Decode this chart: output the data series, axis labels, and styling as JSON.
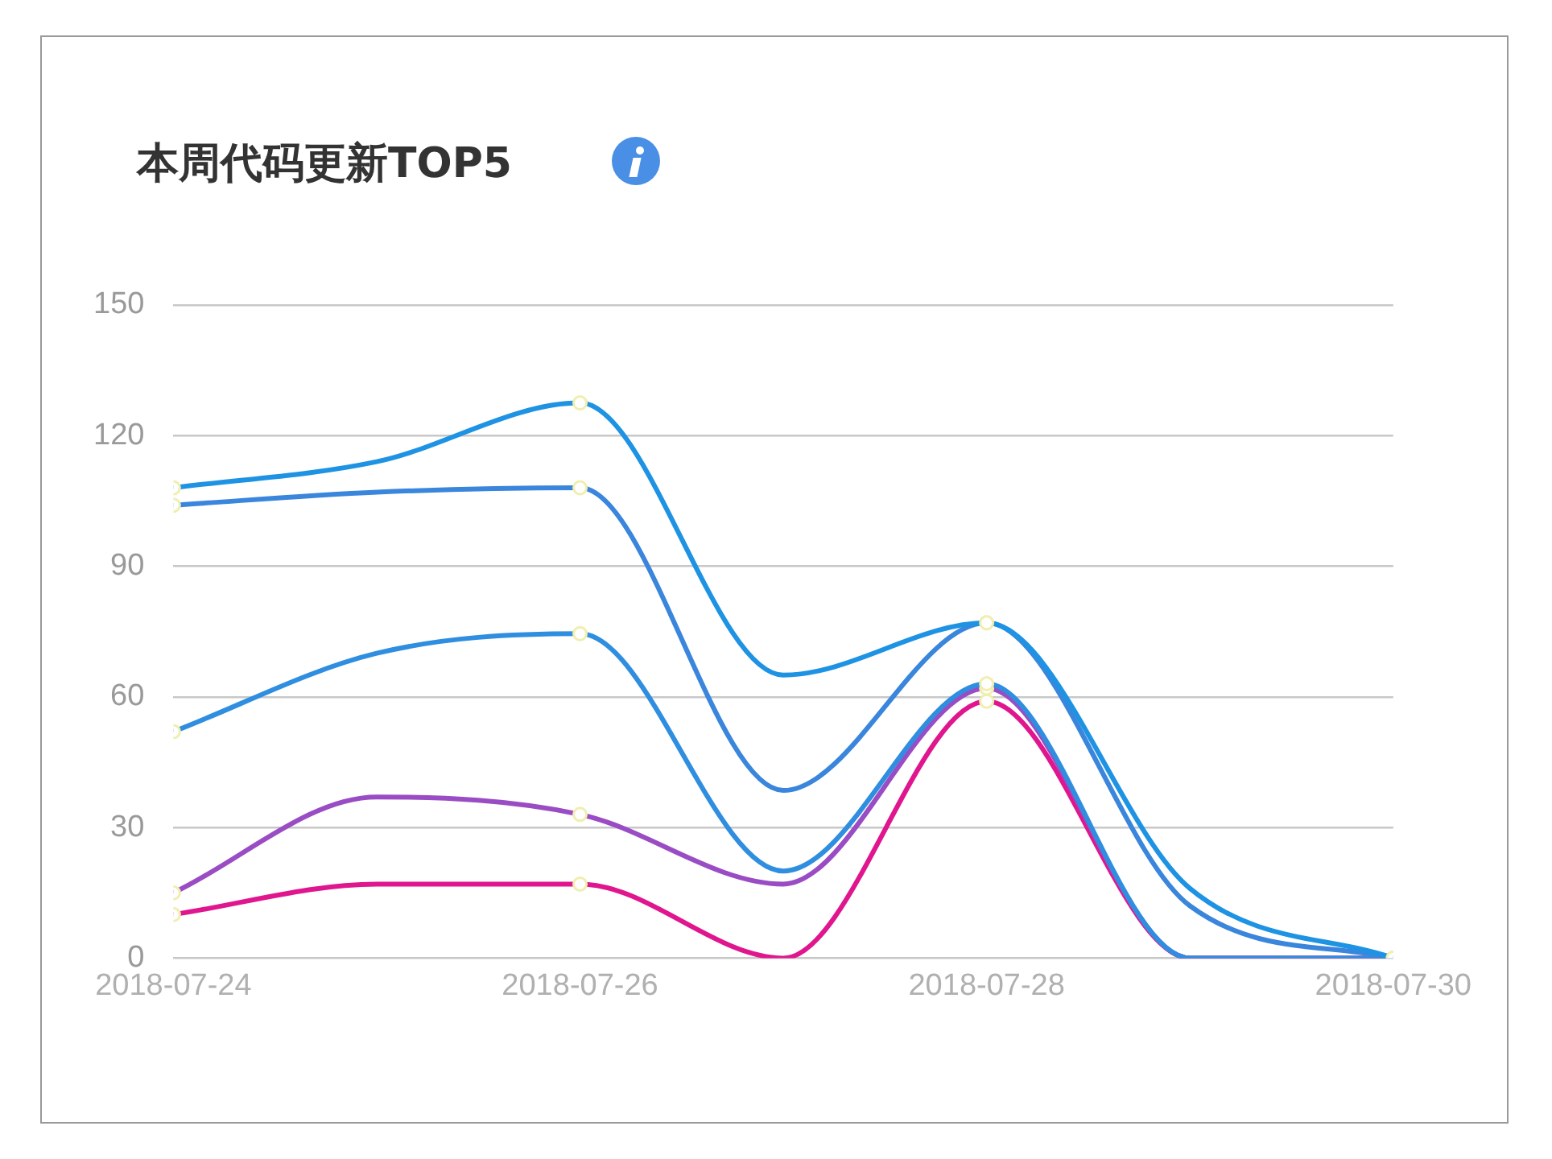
{
  "chart_data": {
    "type": "line",
    "title": "本周代码更新TOP5",
    "x": [
      "2018-07-24",
      "2018-07-25",
      "2018-07-26",
      "2018-07-27",
      "2018-07-28",
      "2018-07-29",
      "2018-07-30"
    ],
    "series": [
      {
        "color": "#1f93e3",
        "values": [
          108,
          114,
          127.5,
          65,
          77,
          16,
          0
        ]
      },
      {
        "color": "#3a86dc",
        "values": [
          104,
          107,
          108,
          38.5,
          77,
          12,
          0
        ]
      },
      {
        "color": "#2f8ee0",
        "values": [
          52,
          70,
          74.5,
          20,
          63,
          0,
          0
        ]
      },
      {
        "color": "#9a4cc4",
        "values": [
          15,
          37,
          33,
          17,
          62,
          0,
          0
        ]
      },
      {
        "color": "#e0168e",
        "values": [
          10,
          17,
          17,
          0,
          59,
          0,
          0
        ]
      }
    ],
    "xlim": [
      "2018-07-24",
      "2018-07-30"
    ],
    "xticks": [
      "2018-07-24",
      "2018-07-26",
      "2018-07-28",
      "2018-07-30"
    ],
    "ylim": [
      0,
      150
    ],
    "yticks": [
      0,
      30,
      60,
      90,
      120,
      150
    ],
    "grid": "y",
    "marker": "circle",
    "line_style": "solid",
    "legend": false
  }
}
